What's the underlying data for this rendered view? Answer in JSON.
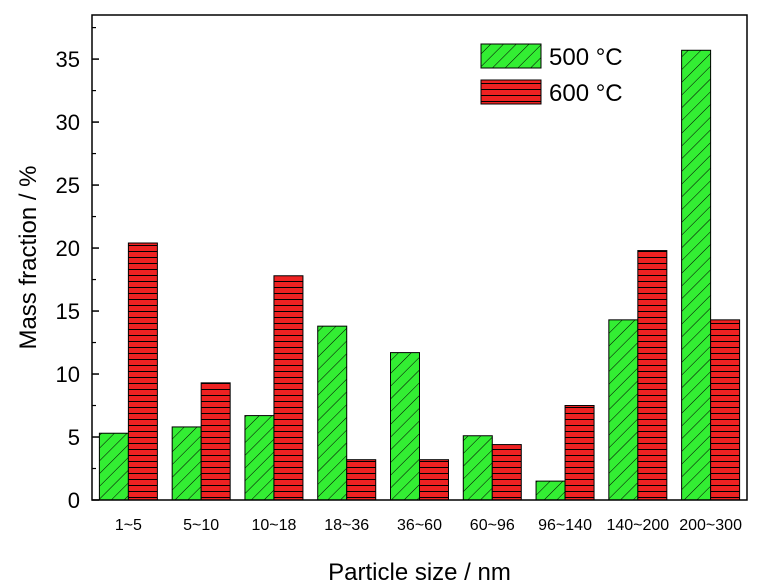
{
  "chart_data": {
    "type": "bar",
    "categories": [
      "1~5",
      "5~10",
      "10~18",
      "18~36",
      "36~60",
      "60~96",
      "96~140",
      "140~200",
      "200~300"
    ],
    "series": [
      {
        "name": "500 °C",
        "values": [
          5.3,
          5.8,
          6.7,
          13.8,
          11.7,
          5.1,
          1.5,
          14.3,
          35.7
        ],
        "color": "#33ee33",
        "pattern": "diagonal-hatch"
      },
      {
        "name": "600 °C",
        "values": [
          20.4,
          9.3,
          17.8,
          3.2,
          3.2,
          4.4,
          7.5,
          19.8,
          14.3
        ],
        "color": "#ee2222",
        "pattern": "horizontal-lines"
      }
    ],
    "xlabel": "Particle size / nm",
    "ylabel": "Mass fraction / %",
    "ylim": [
      0,
      38.5
    ],
    "yticks": [
      0,
      5,
      10,
      15,
      20,
      25,
      30,
      35
    ],
    "grid": false,
    "legend": "top-right"
  }
}
